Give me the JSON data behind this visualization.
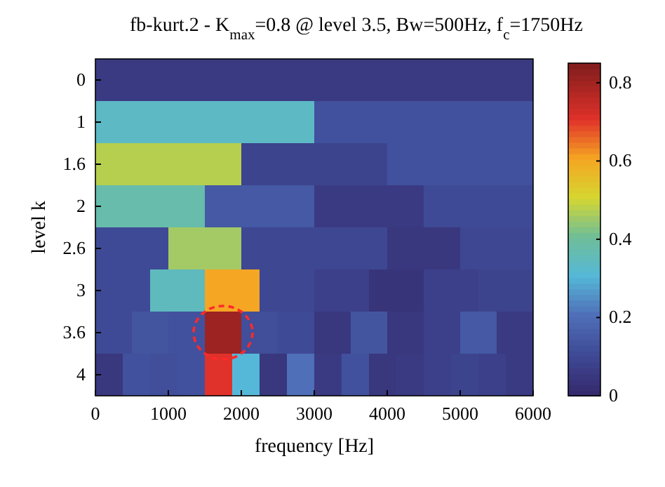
{
  "chart_data": {
    "type": "heatmap",
    "title": "fb-kurt.2 - K$_{max}$=0.8 @ level 3.5, Bw=500Hz, f$_{c}$=1750Hz",
    "xlabel": "frequency [Hz]",
    "ylabel": "level k",
    "xlim": [
      0,
      6000
    ],
    "xticks": [
      0,
      1000,
      2000,
      3000,
      4000,
      5000,
      6000
    ],
    "x": [
      62.5,
      187.5,
      312.5,
      437.5,
      562.5,
      687.5,
      812.5,
      937.5,
      1062.5,
      1187.5,
      1312.5,
      1437.5,
      1562.5,
      1687.5,
      1812.5,
      1937.5,
      2062.5,
      2187.5,
      2312.5,
      2437.5,
      2562.5,
      2687.5,
      2812.5,
      2937.5,
      3062.5,
      3187.5,
      3312.5,
      3437.5,
      3562.5,
      3687.5,
      3812.5,
      3937.5,
      4062.5,
      4187.5,
      4312.5,
      4437.5,
      4562.5,
      4687.5,
      4812.5,
      4937.5,
      5062.5,
      5187.5,
      5312.5,
      5437.5,
      5562.5,
      5687.5,
      5812.5,
      5937.5
    ],
    "y_categories": [
      "0",
      "1",
      "1.6",
      "2",
      "2.6",
      "3",
      "3.6",
      "4"
    ],
    "cells": [
      [
        0.05,
        0.05,
        0.05,
        0.05,
        0.05,
        0.05,
        0.05,
        0.05,
        0.05,
        0.05,
        0.05,
        0.05,
        0.05,
        0.05,
        0.05,
        0.05,
        0.05,
        0.05,
        0.05,
        0.05,
        0.05,
        0.05,
        0.05,
        0.05,
        0.05,
        0.05,
        0.05,
        0.05,
        0.05,
        0.05,
        0.05,
        0.05,
        0.05,
        0.05,
        0.05,
        0.05,
        0.05,
        0.05,
        0.05,
        0.05,
        0.05,
        0.05,
        0.05,
        0.05,
        0.05,
        0.05,
        0.05,
        0.05
      ],
      [
        0.33,
        0.33,
        0.33,
        0.33,
        0.33,
        0.33,
        0.33,
        0.33,
        0.33,
        0.33,
        0.33,
        0.33,
        0.33,
        0.33,
        0.33,
        0.33,
        0.33,
        0.33,
        0.33,
        0.33,
        0.33,
        0.33,
        0.33,
        0.33,
        0.12,
        0.12,
        0.12,
        0.12,
        0.12,
        0.12,
        0.12,
        0.12,
        0.12,
        0.12,
        0.12,
        0.12,
        0.12,
        0.12,
        0.12,
        0.12,
        0.12,
        0.12,
        0.12,
        0.12,
        0.12,
        0.12,
        0.12,
        0.12
      ],
      [
        0.47,
        0.47,
        0.47,
        0.47,
        0.47,
        0.47,
        0.47,
        0.47,
        0.47,
        0.47,
        0.47,
        0.47,
        0.47,
        0.47,
        0.47,
        0.47,
        0.08,
        0.08,
        0.08,
        0.08,
        0.08,
        0.08,
        0.08,
        0.08,
        0.08,
        0.08,
        0.08,
        0.08,
        0.08,
        0.08,
        0.08,
        0.08,
        0.12,
        0.12,
        0.12,
        0.12,
        0.12,
        0.12,
        0.12,
        0.12,
        0.12,
        0.12,
        0.12,
        0.12,
        0.12,
        0.12,
        0.12,
        0.12
      ],
      [
        0.37,
        0.37,
        0.37,
        0.37,
        0.37,
        0.37,
        0.37,
        0.37,
        0.37,
        0.37,
        0.37,
        0.37,
        0.14,
        0.14,
        0.14,
        0.14,
        0.14,
        0.14,
        0.14,
        0.14,
        0.14,
        0.14,
        0.14,
        0.14,
        0.05,
        0.05,
        0.05,
        0.05,
        0.05,
        0.05,
        0.05,
        0.05,
        0.05,
        0.05,
        0.05,
        0.05,
        0.1,
        0.1,
        0.1,
        0.1,
        0.1,
        0.1,
        0.1,
        0.1,
        0.1,
        0.1,
        0.1,
        0.1
      ],
      [
        0.1,
        0.1,
        0.1,
        0.1,
        0.1,
        0.1,
        0.1,
        0.1,
        0.45,
        0.45,
        0.45,
        0.45,
        0.45,
        0.45,
        0.45,
        0.45,
        0.09,
        0.09,
        0.09,
        0.09,
        0.09,
        0.09,
        0.09,
        0.09,
        0.09,
        0.09,
        0.09,
        0.09,
        0.09,
        0.09,
        0.09,
        0.09,
        0.04,
        0.04,
        0.04,
        0.04,
        0.04,
        0.04,
        0.04,
        0.04,
        0.09,
        0.09,
        0.09,
        0.09,
        0.09,
        0.09,
        0.09,
        0.09
      ],
      [
        0.1,
        0.1,
        0.1,
        0.1,
        0.1,
        0.1,
        0.34,
        0.34,
        0.34,
        0.34,
        0.34,
        0.34,
        0.6,
        0.6,
        0.6,
        0.6,
        0.6,
        0.6,
        0.09,
        0.09,
        0.09,
        0.09,
        0.09,
        0.09,
        0.07,
        0.07,
        0.07,
        0.07,
        0.07,
        0.07,
        0.03,
        0.03,
        0.03,
        0.03,
        0.03,
        0.03,
        0.07,
        0.07,
        0.07,
        0.07,
        0.07,
        0.07,
        0.08,
        0.08,
        0.08,
        0.08,
        0.08,
        0.08
      ],
      [
        0.1,
        0.1,
        0.1,
        0.1,
        0.13,
        0.13,
        0.13,
        0.13,
        0.12,
        0.12,
        0.12,
        0.12,
        0.8,
        0.8,
        0.8,
        0.8,
        0.11,
        0.11,
        0.11,
        0.11,
        0.1,
        0.1,
        0.1,
        0.1,
        0.04,
        0.04,
        0.04,
        0.04,
        0.13,
        0.13,
        0.13,
        0.13,
        0.04,
        0.04,
        0.04,
        0.04,
        0.07,
        0.07,
        0.07,
        0.07,
        0.14,
        0.14,
        0.14,
        0.14,
        0.05,
        0.05,
        0.05,
        0.05
      ],
      [
        0.04,
        0.04,
        0.04,
        0.12,
        0.12,
        0.12,
        0.11,
        0.11,
        0.11,
        0.12,
        0.12,
        0.12,
        0.7,
        0.7,
        0.7,
        0.3,
        0.3,
        0.3,
        0.04,
        0.04,
        0.04,
        0.2,
        0.2,
        0.2,
        0.05,
        0.05,
        0.05,
        0.12,
        0.12,
        0.12,
        0.04,
        0.04,
        0.04,
        0.05,
        0.05,
        0.05,
        0.07,
        0.07,
        0.07,
        0.08,
        0.08,
        0.08,
        0.07,
        0.07,
        0.07,
        0.05,
        0.05,
        0.05
      ]
    ],
    "clim": [
      0,
      0.85
    ],
    "cticks": [
      0,
      0.2,
      0.4,
      0.6,
      0.8
    ]
  }
}
